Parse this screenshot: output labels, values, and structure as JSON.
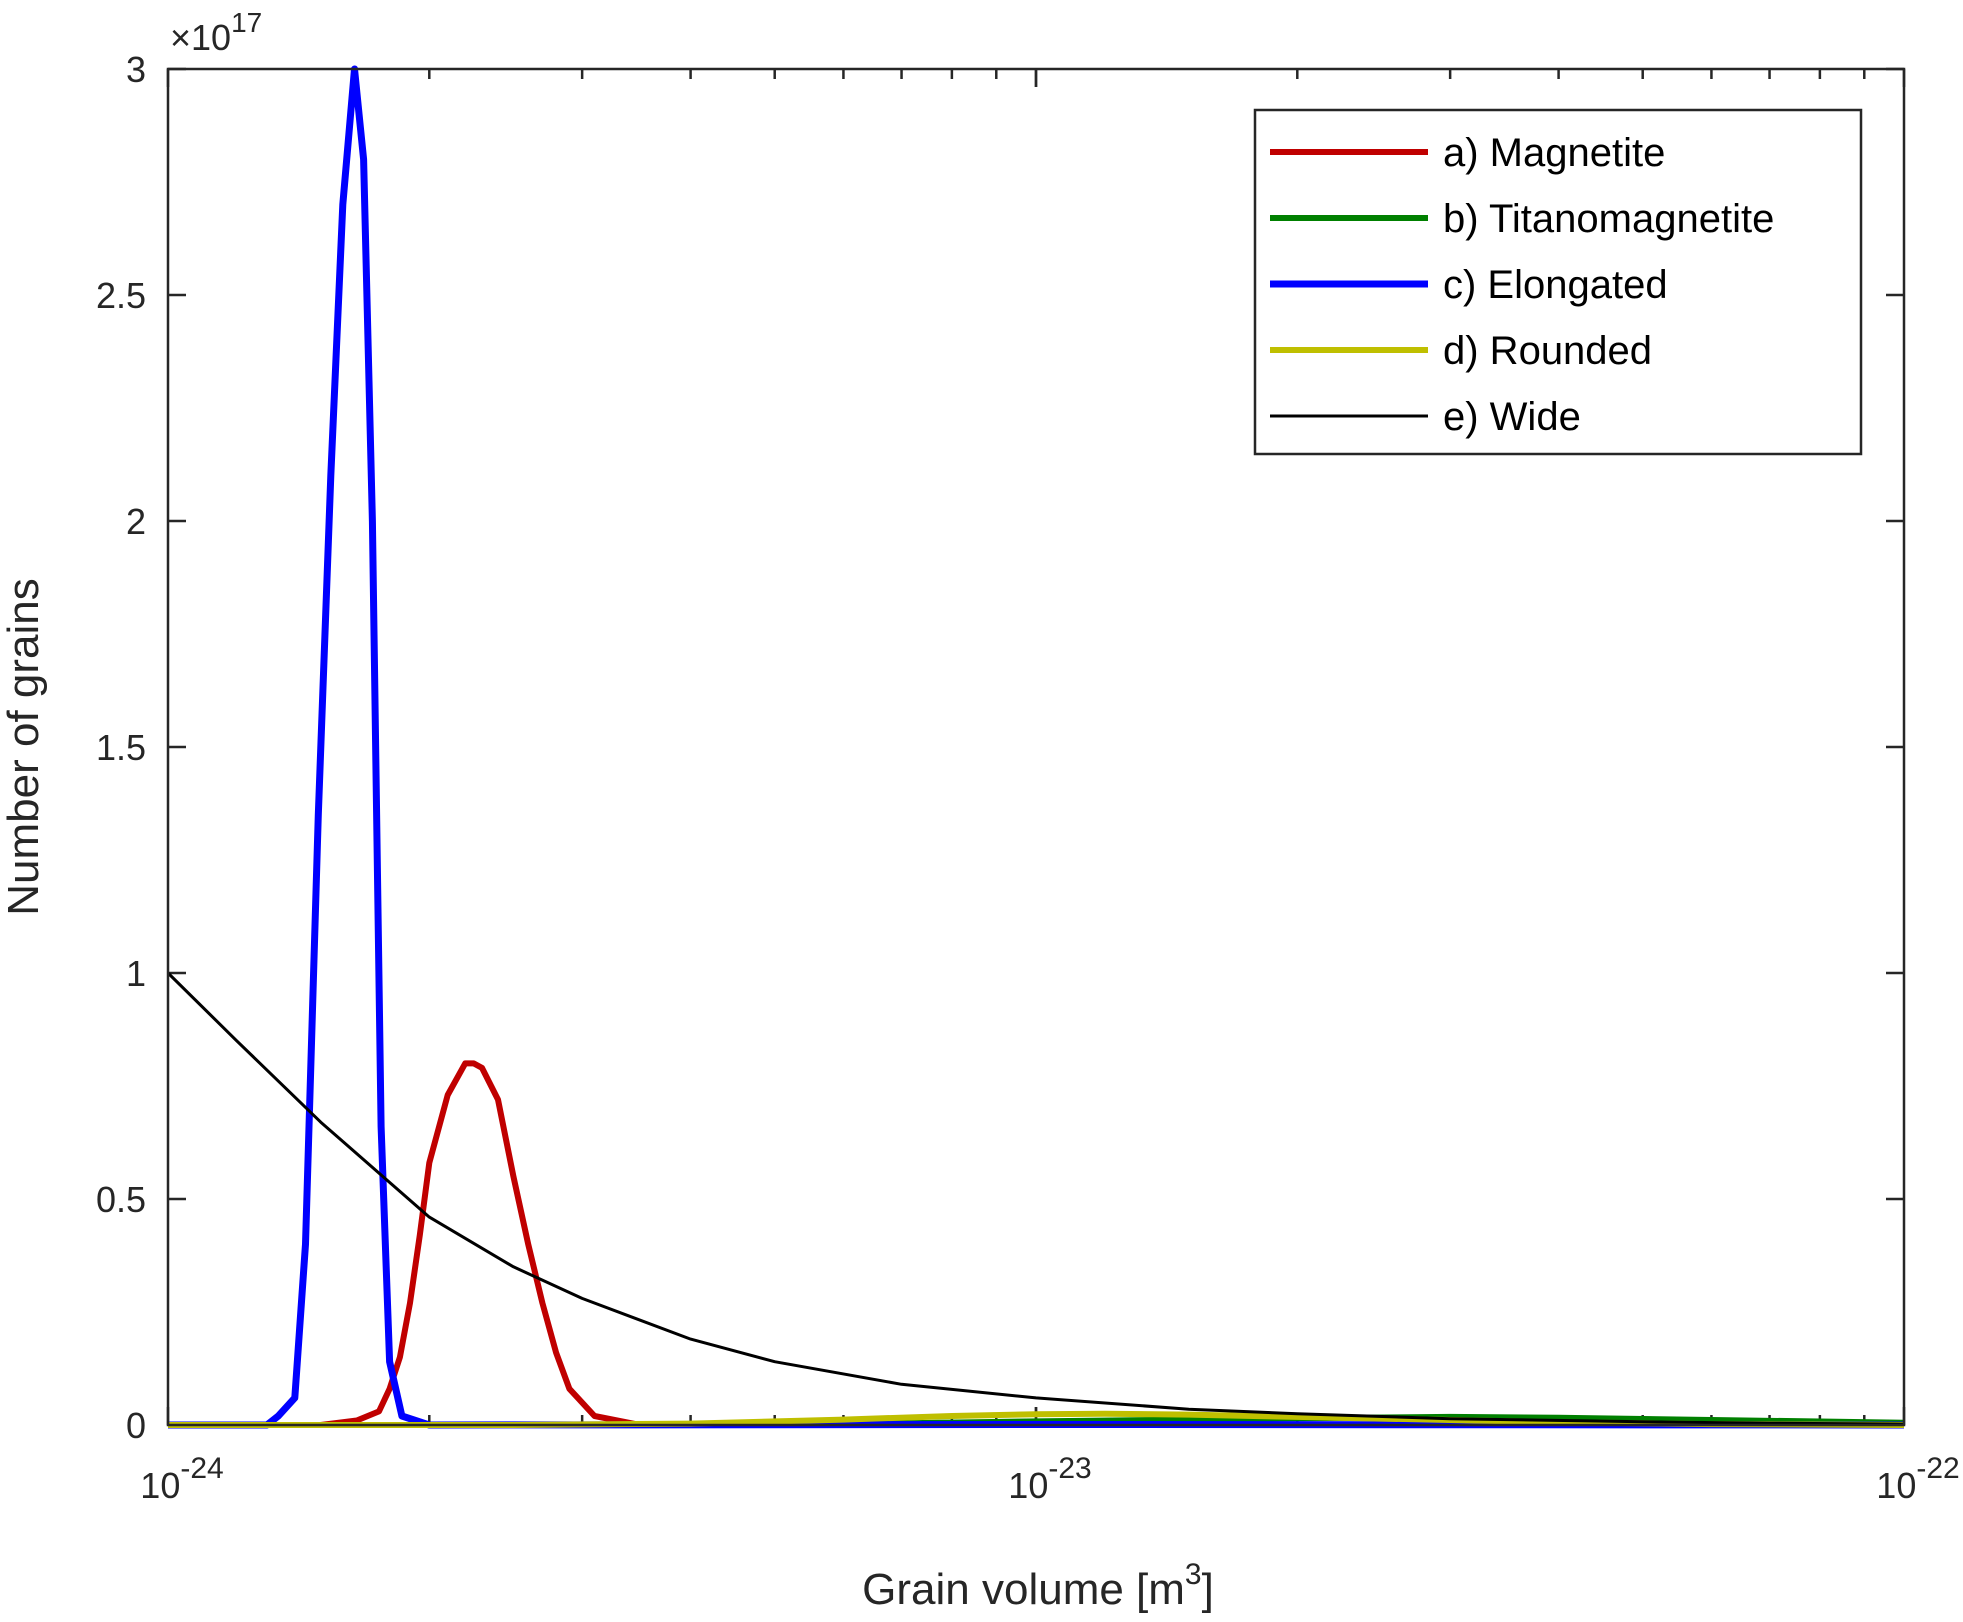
{
  "chart_data": {
    "type": "line",
    "xscale": "log",
    "xlim": [
      1e-24,
      1e-22
    ],
    "ylim": [
      0,
      3e+17
    ],
    "xlabel": "Grain volume [m",
    "xlabel_sup": "3",
    "xlabel_end": "]",
    "ylabel": "Number of grains",
    "y_exponent_label": "×10",
    "y_exponent": "17",
    "x_ticks": [
      {
        "value": 1e-24,
        "base": "10",
        "exp": "-24"
      },
      {
        "value": 1e-23,
        "base": "10",
        "exp": "-23"
      },
      {
        "value": 1e-22,
        "base": "10",
        "exp": "-22"
      }
    ],
    "y_ticks": [
      {
        "value": 0,
        "label": "0"
      },
      {
        "value": 5e+16,
        "label": "0.5"
      },
      {
        "value": 1e+17,
        "label": "1"
      },
      {
        "value": 1.5e+17,
        "label": "1.5"
      },
      {
        "value": 2e+17,
        "label": "2"
      },
      {
        "value": 2.5e+17,
        "label": "2.5"
      },
      {
        "value": 3e+17,
        "label": "3"
      }
    ],
    "legend_position": "top-right",
    "series": [
      {
        "name": "a) Magnetite",
        "color": "#c00000",
        "width": 6,
        "x": [
          1e-24,
          1.5e-24,
          1.65e-24,
          1.75e-24,
          1.8e-24,
          1.85e-24,
          1.9e-24,
          1.95e-24,
          2e-24,
          2.1e-24,
          2.2e-24,
          2.25e-24,
          2.3e-24,
          2.4e-24,
          2.5e-24,
          2.6e-24,
          2.7e-24,
          2.8e-24,
          2.9e-24,
          3.1e-24,
          3.5e-24,
          1e-22
        ],
        "y": [
          0,
          0,
          1000000000000000.0,
          3000000000000000.0,
          8000000000000000.0,
          1.5e+16,
          2.7e+16,
          4.2e+16,
          5.8e+16,
          7.3e+16,
          8e+16,
          8e+16,
          7.9e+16,
          7.2e+16,
          5.5e+16,
          4e+16,
          2.7e+16,
          1.6e+16,
          8000000000000000.0,
          2000000000000000.0,
          0,
          0
        ]
      },
      {
        "name": "b) Titanomagnetite",
        "color": "#008000",
        "width": 6,
        "x": [
          1e-24,
          4e-24,
          6e-24,
          1e-23,
          1.5e-23,
          2e-23,
          3e-23,
          4e-23,
          6e-23,
          1e-22
        ],
        "y": [
          0,
          0,
          200000000000000.0,
          800000000000000.0,
          1200000000000000.0,
          1500000000000000.0,
          1800000000000000.0,
          1600000000000000.0,
          1100000000000000.0,
          500000000000000.0
        ]
      },
      {
        "name": "c) Elongated",
        "color": "#0000ff",
        "width": 7,
        "x": [
          1e-24,
          1.3e-24,
          1.34e-24,
          1.4e-24,
          1.44e-24,
          1.49e-24,
          1.54e-24,
          1.59e-24,
          1.64e-24,
          1.68e-24,
          1.72e-24,
          1.76e-24,
          1.8e-24,
          1.86e-24,
          2e-24,
          1e-23,
          1e-22
        ],
        "y": [
          0,
          0,
          2000000000000000.0,
          6000000000000000.0,
          4e+16,
          1.35e+17,
          2.1e+17,
          2.7e+17,
          3e+17,
          2.8e+17,
          2e+17,
          6.6e+16,
          1.4e+16,
          2000000000000000.0,
          0,
          100000000000000.0,
          0
        ]
      },
      {
        "name": "d) Rounded",
        "color": "#bfbf00",
        "width": 6,
        "x": [
          1e-24,
          2.5e-24,
          4e-24,
          6e-24,
          8e-24,
          1e-23,
          1.2e-23,
          1.5e-23,
          2e-23,
          3e-23,
          4e-23,
          6e-23,
          1e-22
        ],
        "y": [
          0,
          0,
          300000000000000.0,
          1200000000000000.0,
          2000000000000000.0,
          2400000000000000.0,
          2500000000000000.0,
          2300000000000000.0,
          1800000000000000.0,
          1100000000000000.0,
          600000000000000.0,
          200000000000000.0,
          0
        ]
      },
      {
        "name": "e) Wide",
        "color": "#000000",
        "width": 3,
        "x": [
          1e-24,
          1.2e-24,
          1.5e-24,
          2e-24,
          2.5e-24,
          3e-24,
          4e-24,
          5e-24,
          7e-24,
          1e-23,
          1.5e-23,
          2e-23,
          3e-23,
          5e-23,
          7e-23,
          1e-22
        ],
        "y": [
          1e+17,
          8.5e+16,
          6.7e+16,
          4.6e+16,
          3.5e+16,
          2.8e+16,
          1.9e+16,
          1.4e+16,
          9000000000000000.0,
          6000000000000000.0,
          3500000000000000.0,
          2500000000000000.0,
          1400000000000000.0,
          700000000000000.0,
          400000000000000.0,
          200000000000000.0
        ]
      }
    ]
  }
}
